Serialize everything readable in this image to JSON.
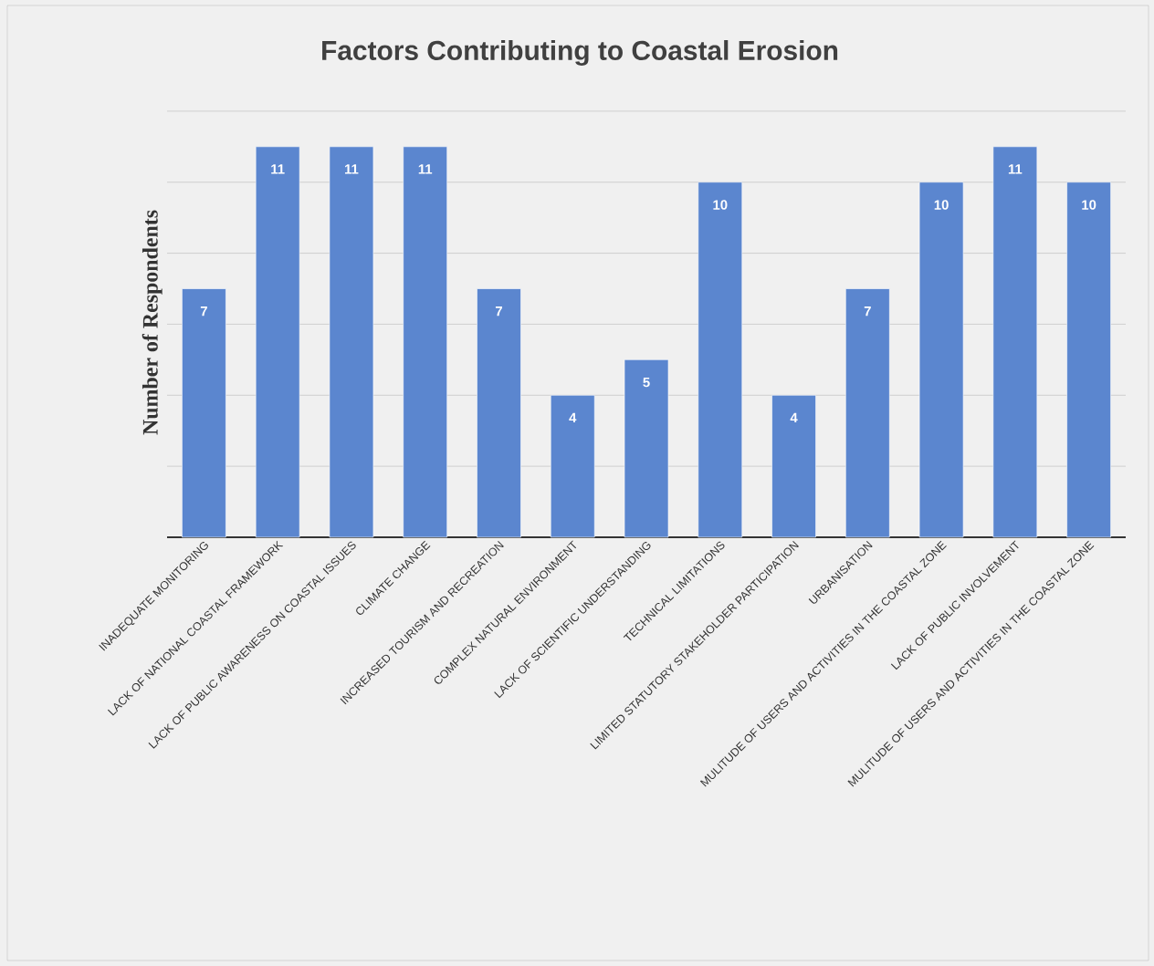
{
  "chart_data": {
    "type": "bar",
    "title": "Factors Contributing to Coastal Erosion",
    "ylabel": "Number of Respondents",
    "categories": [
      "INADEQUATE MONITORING",
      "LACK OF NATIONAL COASTAL FRAMEWORK",
      "LACK OF PUBLIC AWARENESS ON COASTAL ISSUES",
      "CLIMATE CHANGE",
      "INCREASED TOURISM AND RECREATION",
      "COMPLEX NATURAL ENVIRONMENT",
      "LACK OF SCIENTIFIC UNDERSTANDING",
      "TECHNICAL LIMITATIONS",
      "LIMITED STATUTORY STAKEHOLDER PARTICIPATION",
      "URBANISATION",
      "MULITUDE OF USERS AND ACTIVITIES IN THE COASTAL ZONE",
      "LACK OF PUBLIC INVOLVEMENT",
      "MULITUDE OF USERS AND ACTIVITIES IN THE COASTAL ZONE"
    ],
    "values": [
      7,
      11,
      11,
      11,
      7,
      4,
      5,
      10,
      4,
      7,
      10,
      11,
      10
    ],
    "color": "#5b86cf",
    "data_labels": true,
    "grid": "y",
    "tick_labels": "x"
  }
}
